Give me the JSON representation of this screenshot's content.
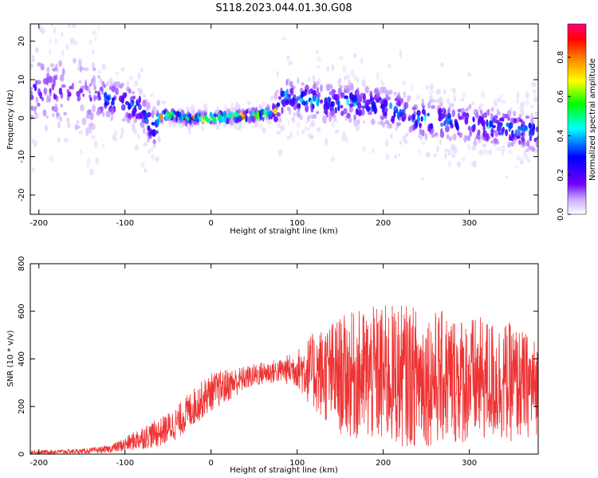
{
  "title": "S118.2023.044.01.30.G08",
  "chart_data": [
    {
      "type": "heatmap",
      "xlabel": "Height of straight line (km)",
      "ylabel": "Frequency (Hz)",
      "xlim": [
        -210,
        380
      ],
      "ylim": [
        -25,
        24.5
      ],
      "x_ticks": [
        -200,
        -100,
        0,
        100,
        200,
        300
      ],
      "y_ticks": [
        -20,
        -10,
        0,
        10,
        20
      ],
      "ridge": {
        "x": [
          -210,
          -180,
          -150,
          -120,
          -100,
          -80,
          -70,
          -65,
          -60,
          -50,
          -30,
          0,
          30,
          60,
          75,
          85,
          100,
          130,
          160,
          200,
          240,
          280,
          320,
          350,
          380
        ],
        "y": [
          8,
          7,
          6,
          5,
          4,
          2,
          -2,
          -3,
          0,
          1,
          0,
          0,
          0.5,
          1,
          2,
          6,
          5,
          4,
          4,
          3,
          0,
          -1,
          -2,
          -3,
          -4
        ]
      },
      "colorbar": {
        "label": "Normalized spectral amplitude",
        "range": [
          0,
          0.97
        ],
        "ticks": [
          0.0,
          0.2,
          0.4,
          0.6,
          0.8
        ],
        "colormap": [
          "#ffffff",
          "#7000ff",
          "#0000ff",
          "#00ffff",
          "#00ff00",
          "#ffff00",
          "#ff8000",
          "#ff0000",
          "#ff0080"
        ]
      }
    },
    {
      "type": "line",
      "xlabel": "Height of straight line (km)",
      "ylabel": "SNR (10 * v/v)",
      "xlim": [
        -210,
        380
      ],
      "ylim": [
        0,
        800
      ],
      "x_ticks": [
        -200,
        -100,
        0,
        100,
        200,
        300
      ],
      "y_ticks": [
        0,
        200,
        400,
        600,
        800
      ],
      "series": [
        {
          "color": "#ee3333",
          "envelope": {
            "x": [
              -210,
              -150,
              -120,
              -100,
              -80,
              -60,
              -40,
              -20,
              0,
              20,
              40,
              60,
              80,
              100,
              115,
              130,
              150,
              175,
              200,
              225,
              250,
              275,
              300,
              325,
              350,
              380
            ],
            "mean": [
              8,
              12,
              20,
              40,
              70,
              90,
              130,
              200,
              260,
              290,
              320,
              340,
              350,
              360,
              350,
              340,
              330,
              330,
              330,
              330,
              320,
              320,
              310,
              310,
              300,
              280
            ],
            "spread": [
              8,
              10,
              15,
              30,
              50,
              60,
              70,
              80,
              80,
              70,
              50,
              50,
              50,
              80,
              150,
              200,
              250,
              280,
              300,
              300,
              290,
              280,
              270,
              260,
              250,
              200
            ]
          }
        }
      ]
    }
  ]
}
